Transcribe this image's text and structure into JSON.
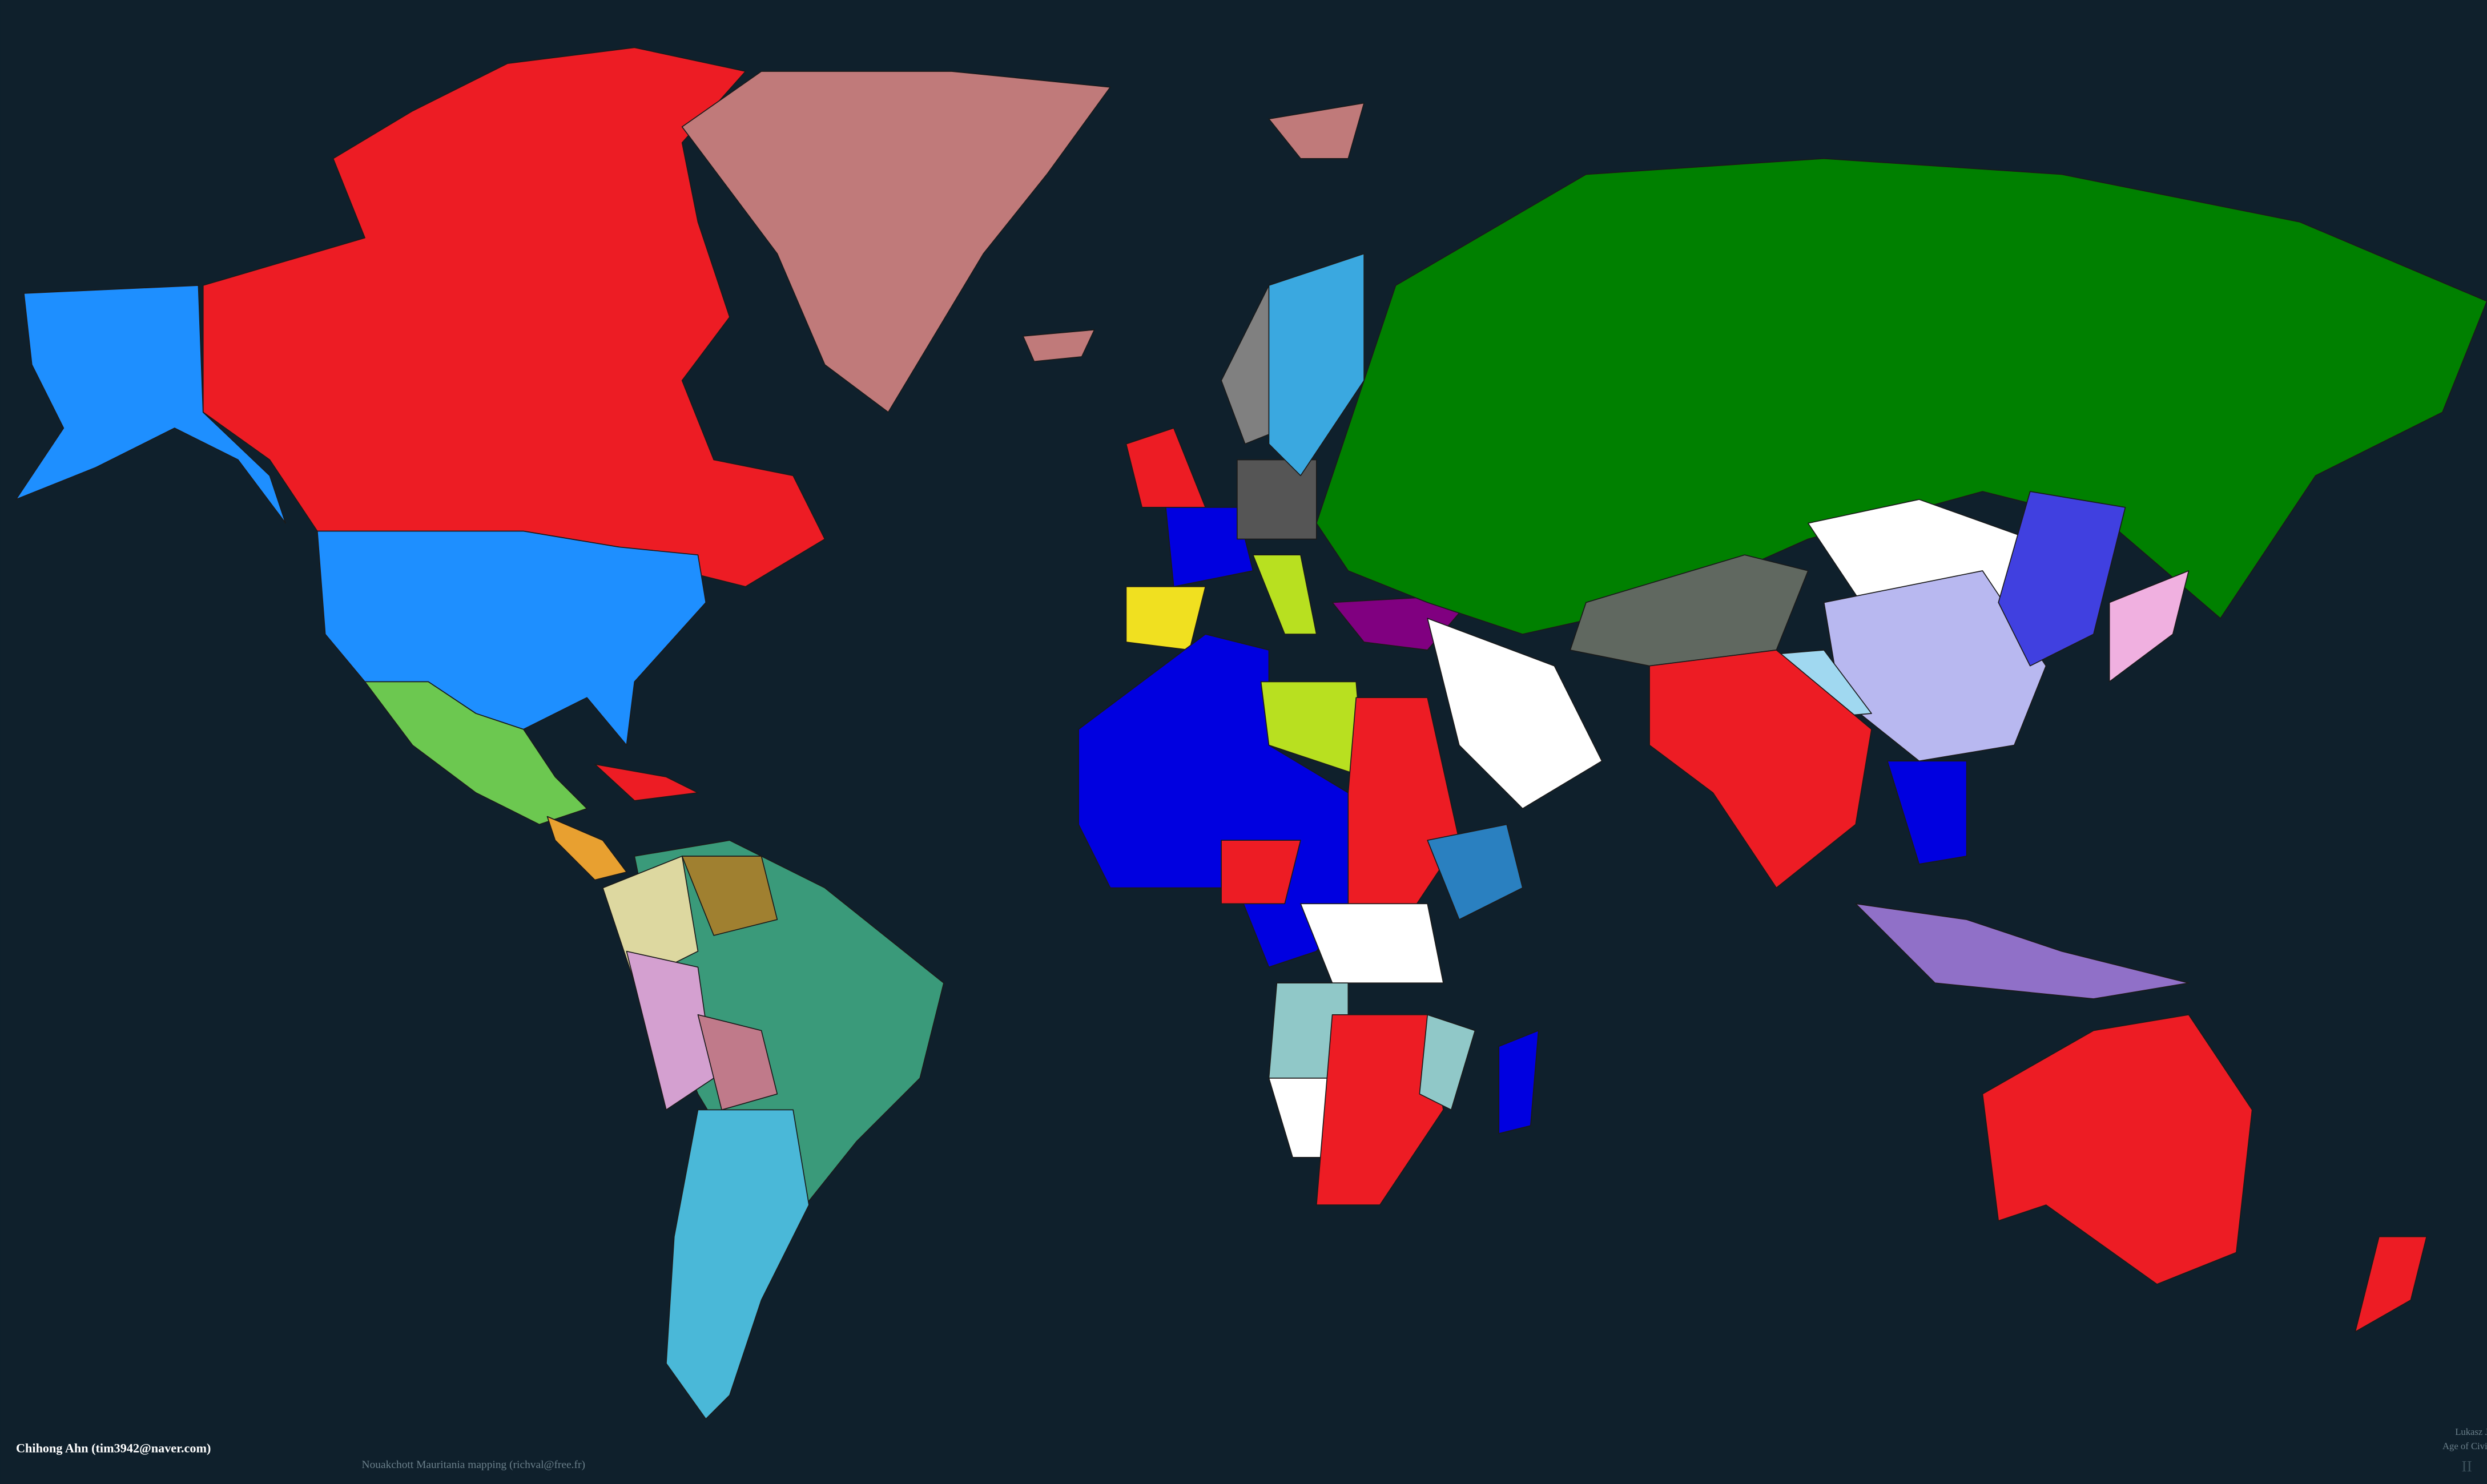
{
  "credits": {
    "author": "Chihong Ahn (tim3942@naver.com)",
    "mapping": "Nouakchott Mauritania mapping (richval@free.fr)",
    "publisher": "Lukasz Jako",
    "game": "Age of Civiliz",
    "version": "II"
  }
}
